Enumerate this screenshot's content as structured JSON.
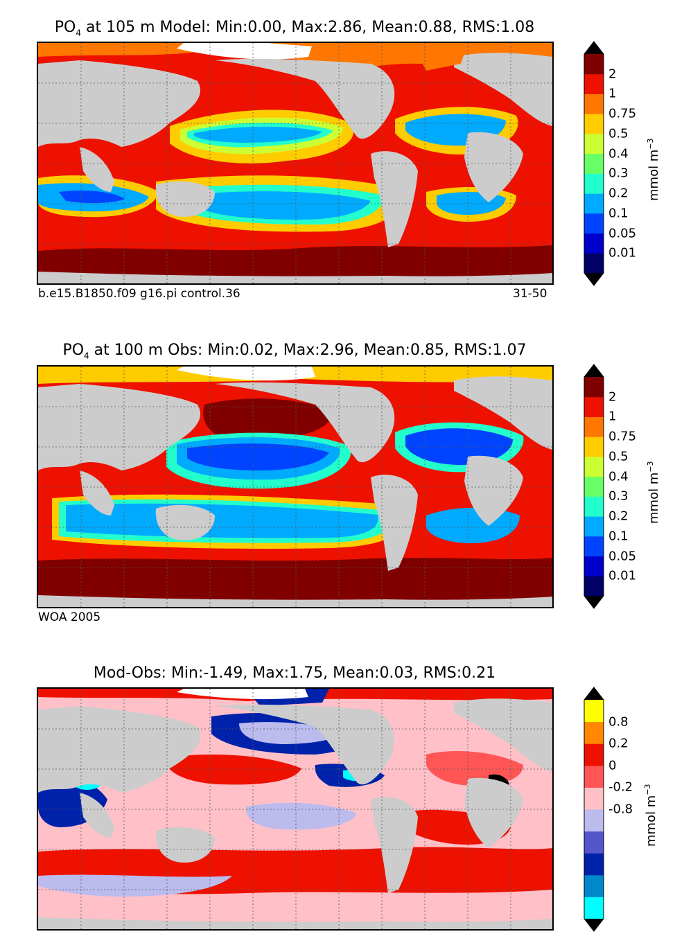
{
  "panels": [
    {
      "title_pre": "PO",
      "title_sub": "4",
      "title_post": " at 105 m Model: Min:0.00, Max:2.86, Mean:0.88, RMS:1.08",
      "foot_left": "b.e15.B1850.f09 g16.pi control.36",
      "foot_right": "31-50",
      "colorbar": {
        "unit_base": "mmol m",
        "unit_exp": "−3",
        "ticks": [
          "2",
          "1",
          "0.75",
          "0.5",
          "0.4",
          "0.3",
          "0.2",
          "0.1",
          "0.05",
          "0.01"
        ],
        "colors": [
          "#000066",
          "#0000cc",
          "#0044ff",
          "#00aaff",
          "#22ffcc",
          "#66ff66",
          "#ccff33",
          "#ffcc00",
          "#ff7700",
          "#ee1100",
          "#800000"
        ],
        "end_color": "#000000"
      }
    },
    {
      "title_pre": "PO",
      "title_sub": "4",
      "title_post": " at 100 m Obs: Min:0.02, Max:2.96, Mean:0.85, RMS:1.07",
      "foot_left": "WOA 2005",
      "foot_right": "",
      "colorbar": {
        "unit_base": "mmol m",
        "unit_exp": "−3",
        "ticks": [
          "2",
          "1",
          "0.75",
          "0.5",
          "0.4",
          "0.3",
          "0.2",
          "0.1",
          "0.05",
          "0.01"
        ],
        "colors": [
          "#000066",
          "#0000cc",
          "#0044ff",
          "#00aaff",
          "#22ffcc",
          "#66ff66",
          "#ccff33",
          "#ffcc00",
          "#ff7700",
          "#ee1100",
          "#800000"
        ],
        "end_color": "#000000"
      }
    },
    {
      "title_pre": "Mod-Obs: Min:-1.49, Max:1.75, Mean:0.03, RMS:0.21",
      "title_sub": "",
      "title_post": "",
      "foot_left": "",
      "foot_right": "",
      "colorbar": {
        "unit_base": "mmol m",
        "unit_exp": "−3",
        "ticks": [
          "0.8",
          "0.2",
          "0",
          "-0.2",
          "-0.8"
        ],
        "colors": [
          "#00ffff",
          "#0088cc",
          "#0022aa",
          "#5555cc",
          "#bbbbee",
          "#ffc0c8",
          "#ff5555",
          "#ee1100",
          "#ff8800",
          "#ffff00"
        ],
        "end_color": "#000000"
      }
    }
  ],
  "map_colors": {
    "land": "#cccccc",
    "ice": "#ffffff",
    "coast": "#000000",
    "grid": "#555555"
  }
}
